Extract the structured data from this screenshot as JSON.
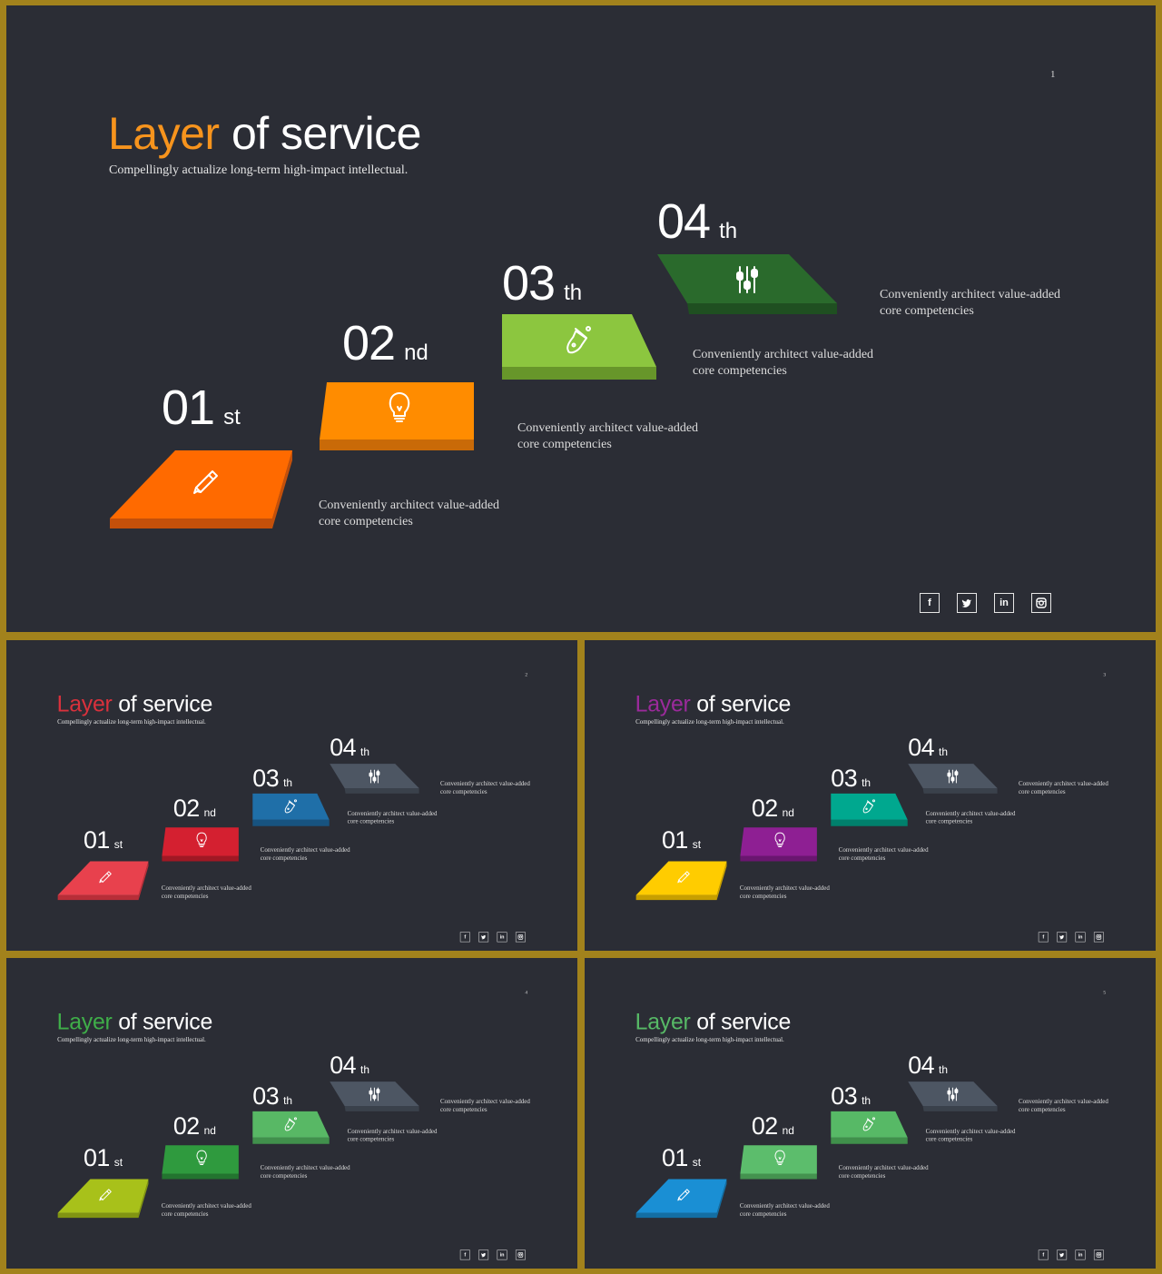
{
  "slides": [
    {
      "page_number": "1",
      "title_highlight": "Layer",
      "title_rest": " of service",
      "subtitle": "Compellingly actualize long-term high-impact intellectual.",
      "accent": "#f7941d",
      "steps": [
        {
          "number": "01",
          "suffix": "st",
          "icon": "pencil-icon",
          "top_color": "#ff6a00",
          "side_color": "#c4500a",
          "description_line1": "Conveniently architect value-added",
          "description_line2": "core competencies"
        },
        {
          "number": "02",
          "suffix": "nd",
          "icon": "lightbulb-icon",
          "top_color": "#ff8c00",
          "side_color": "#c96a08",
          "description_line1": "Conveniently architect value-added",
          "description_line2": "core competencies"
        },
        {
          "number": "03",
          "suffix": "th",
          "icon": "flask-icon",
          "top_color": "#8cc63f",
          "side_color": "#67962a",
          "description_line1": "Conveniently architect value-added",
          "description_line2": "core competencies"
        },
        {
          "number": "04",
          "suffix": "th",
          "icon": "sliders-icon",
          "top_color": "#2a6a2c",
          "side_color": "#1f4f21",
          "description_line1": "Conveniently architect value-added",
          "description_line2": "core competencies"
        }
      ]
    },
    {
      "page_number": "2",
      "title_highlight": "Layer",
      "title_rest": " of service",
      "subtitle": "Compellingly actualize long-term high-impact intellectual.",
      "accent": "#d9313c",
      "steps": [
        {
          "number": "01",
          "suffix": "st",
          "icon": "pencil-icon",
          "top_color": "#e8414d",
          "side_color": "#b82e38",
          "description_line1": "Conveniently architect value-added",
          "description_line2": "core competencies"
        },
        {
          "number": "02",
          "suffix": "nd",
          "icon": "lightbulb-icon",
          "top_color": "#d42030",
          "side_color": "#a01824",
          "description_line1": "Conveniently architect value-added",
          "description_line2": "core competencies"
        },
        {
          "number": "03",
          "suffix": "th",
          "icon": "flask-icon",
          "top_color": "#1f6fa8",
          "side_color": "#175380",
          "description_line1": "Conveniently architect value-added",
          "description_line2": "core competencies"
        },
        {
          "number": "04",
          "suffix": "th",
          "icon": "sliders-icon",
          "top_color": "#4d5663",
          "side_color": "#3a414b",
          "description_line1": "Conveniently architect value-added",
          "description_line2": "core competencies"
        }
      ]
    },
    {
      "page_number": "3",
      "title_highlight": "Layer",
      "title_rest": " of service",
      "subtitle": "Compellingly actualize long-term high-impact intellectual.",
      "accent": "#9b2a9b",
      "steps": [
        {
          "number": "01",
          "suffix": "st",
          "icon": "pencil-icon",
          "top_color": "#ffcc00",
          "side_color": "#c79f00",
          "description_line1": "Conveniently architect value-added",
          "description_line2": "core competencies"
        },
        {
          "number": "02",
          "suffix": "nd",
          "icon": "lightbulb-icon",
          "top_color": "#8e1f93",
          "side_color": "#6a1670",
          "description_line1": "Conveniently architect value-added",
          "description_line2": "core competencies"
        },
        {
          "number": "03",
          "suffix": "th",
          "icon": "flask-icon",
          "top_color": "#00a88f",
          "side_color": "#00806c",
          "description_line1": "Conveniently architect value-added",
          "description_line2": "core competencies"
        },
        {
          "number": "04",
          "suffix": "th",
          "icon": "sliders-icon",
          "top_color": "#4d5663",
          "side_color": "#3a414b",
          "description_line1": "Conveniently architect value-added",
          "description_line2": "core competencies"
        }
      ]
    },
    {
      "page_number": "4",
      "title_highlight": "Layer",
      "title_rest": " of service",
      "subtitle": "Compellingly actualize long-term high-impact intellectual.",
      "accent": "#3fae49",
      "steps": [
        {
          "number": "01",
          "suffix": "st",
          "icon": "pencil-icon",
          "top_color": "#a8c11a",
          "side_color": "#819412",
          "description_line1": "Conveniently architect value-added",
          "description_line2": "core competencies"
        },
        {
          "number": "02",
          "suffix": "nd",
          "icon": "lightbulb-icon",
          "top_color": "#2f9a3e",
          "side_color": "#23742f",
          "description_line1": "Conveniently architect value-added",
          "description_line2": "core competencies"
        },
        {
          "number": "03",
          "suffix": "th",
          "icon": "flask-icon",
          "top_color": "#58b865",
          "side_color": "#41904c",
          "description_line1": "Conveniently architect value-added",
          "description_line2": "core competencies"
        },
        {
          "number": "04",
          "suffix": "th",
          "icon": "sliders-icon",
          "top_color": "#4d5663",
          "side_color": "#3a414b",
          "description_line1": "Conveniently architect value-added",
          "description_line2": "core competencies"
        }
      ]
    },
    {
      "page_number": "5",
      "title_highlight": "Layer",
      "title_rest": " of service",
      "subtitle": "Compellingly actualize long-term high-impact intellectual.",
      "accent": "#57b966",
      "steps": [
        {
          "number": "01",
          "suffix": "st",
          "icon": "pencil-icon",
          "top_color": "#1a8fd4",
          "side_color": "#136ea3",
          "description_line1": "Conveniently architect value-added",
          "description_line2": "core competencies"
        },
        {
          "number": "02",
          "suffix": "nd",
          "icon": "lightbulb-icon",
          "top_color": "#5cbd6c",
          "side_color": "#44924f",
          "description_line1": "Conveniently architect value-added",
          "description_line2": "core competencies"
        },
        {
          "number": "03",
          "suffix": "th",
          "icon": "flask-icon",
          "top_color": "#57b966",
          "side_color": "#40904b",
          "description_line1": "Conveniently architect value-added",
          "description_line2": "core competencies"
        },
        {
          "number": "04",
          "suffix": "th",
          "icon": "sliders-icon",
          "top_color": "#4d5663",
          "side_color": "#3a414b",
          "description_line1": "Conveniently architect value-added",
          "description_line2": "core competencies"
        }
      ]
    }
  ],
  "social_links": [
    {
      "icon": "facebook-icon",
      "label": "f"
    },
    {
      "icon": "twitter-icon",
      "label": ""
    },
    {
      "icon": "linkedin-icon",
      "label": "in"
    },
    {
      "icon": "instagram-icon",
      "label": ""
    }
  ]
}
